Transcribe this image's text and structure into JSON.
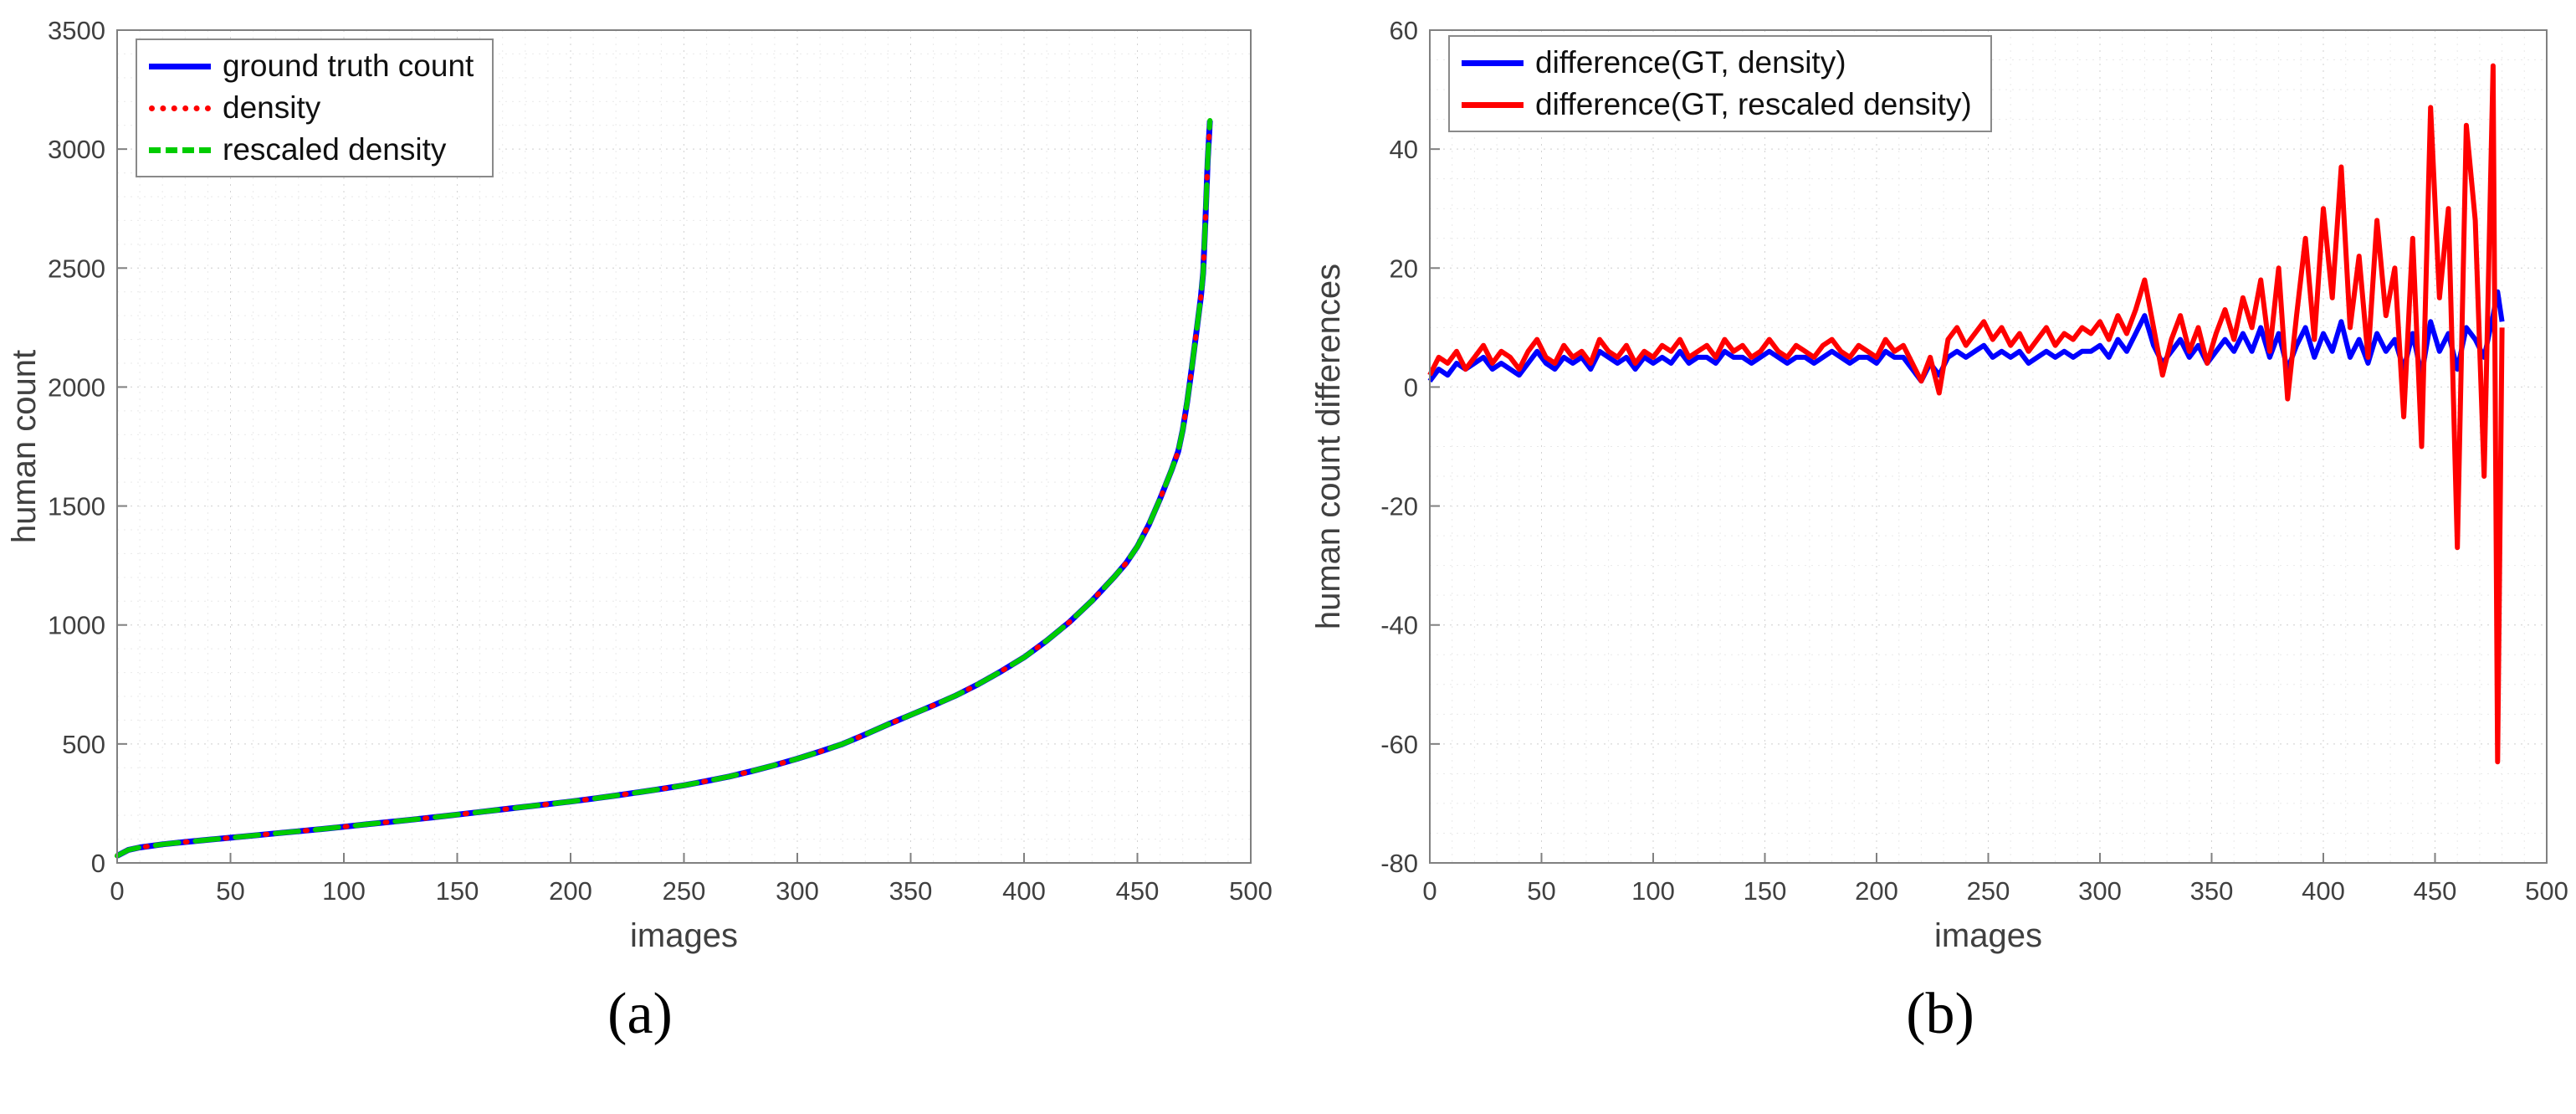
{
  "figure": {
    "caption_a": "(a)",
    "caption_b": "(b)"
  },
  "colors": {
    "blue": "#0000ff",
    "red": "#ff0000",
    "green": "#00cc00",
    "axis": "#808080",
    "grid_major": "#d2d2d2",
    "grid_minor": "#e9e9e9"
  },
  "chart_data": [
    {
      "id": "chart-a",
      "type": "line",
      "title": "",
      "xlabel": "images",
      "ylabel": "human count",
      "xlim": [
        0,
        500
      ],
      "ylim": [
        0,
        3500
      ],
      "xticks": [
        0,
        50,
        100,
        150,
        200,
        250,
        300,
        350,
        400,
        450,
        500
      ],
      "yticks": [
        0,
        500,
        1000,
        1500,
        2000,
        2500,
        3000,
        3500
      ],
      "minor_x": 10,
      "minor_y": 100,
      "grid": true,
      "legend_position": "top-left",
      "x": [
        0,
        5,
        10,
        20,
        30,
        40,
        50,
        60,
        70,
        80,
        90,
        100,
        110,
        120,
        130,
        140,
        150,
        160,
        170,
        180,
        190,
        200,
        210,
        220,
        230,
        240,
        250,
        260,
        270,
        280,
        290,
        300,
        310,
        320,
        330,
        340,
        350,
        360,
        370,
        380,
        390,
        400,
        410,
        420,
        430,
        440,
        445,
        450,
        455,
        460,
        465,
        468,
        470,
        472,
        474,
        476,
        478,
        479,
        480,
        481,
        482
      ],
      "series": [
        {
          "name": "ground truth count",
          "color": "#0000ff",
          "width": 7,
          "dash": "",
          "values": [
            30,
            55,
            65,
            78,
            88,
            97,
            106,
            115,
            124,
            133,
            142,
            152,
            162,
            172,
            182,
            192,
            203,
            214,
            225,
            236,
            247,
            258,
            270,
            283,
            297,
            311,
            326,
            344,
            363,
            386,
            411,
            438,
            468,
            500,
            540,
            582,
            622,
            662,
            704,
            752,
            806,
            864,
            934,
            1012,
            1102,
            1204,
            1260,
            1330,
            1420,
            1530,
            1650,
            1730,
            1820,
            1940,
            2080,
            2230,
            2380,
            2480,
            2700,
            2950,
            3120
          ]
        },
        {
          "name": "density",
          "color": "#ff0000",
          "width": 6,
          "dash": "2 10",
          "values": [
            30,
            55,
            65,
            78,
            88,
            97,
            106,
            115,
            124,
            133,
            142,
            152,
            162,
            172,
            182,
            192,
            203,
            214,
            225,
            236,
            247,
            258,
            270,
            283,
            297,
            311,
            326,
            344,
            363,
            386,
            411,
            438,
            468,
            500,
            540,
            582,
            622,
            662,
            704,
            752,
            806,
            864,
            934,
            1012,
            1102,
            1204,
            1260,
            1330,
            1420,
            1530,
            1650,
            1730,
            1820,
            1940,
            2080,
            2230,
            2380,
            2480,
            2700,
            2950,
            3120
          ]
        },
        {
          "name": "rescaled density",
          "color": "#00cc00",
          "width": 6,
          "dash": "28 20",
          "values": [
            30,
            55,
            65,
            78,
            88,
            97,
            106,
            115,
            124,
            133,
            142,
            152,
            162,
            172,
            182,
            192,
            203,
            214,
            225,
            236,
            247,
            258,
            270,
            283,
            297,
            311,
            326,
            344,
            363,
            386,
            411,
            438,
            468,
            500,
            540,
            582,
            622,
            662,
            704,
            752,
            806,
            864,
            934,
            1012,
            1102,
            1204,
            1260,
            1330,
            1420,
            1530,
            1650,
            1730,
            1820,
            1940,
            2080,
            2230,
            2380,
            2480,
            2700,
            2950,
            3120
          ]
        }
      ]
    },
    {
      "id": "chart-b",
      "type": "line",
      "title": "",
      "xlabel": "images",
      "ylabel": "human count differences",
      "xlim": [
        0,
        500
      ],
      "ylim": [
        -80,
        60
      ],
      "xticks": [
        0,
        50,
        100,
        150,
        200,
        250,
        300,
        350,
        400,
        450,
        500
      ],
      "yticks": [
        -80,
        -60,
        -40,
        -20,
        0,
        20,
        40,
        60
      ],
      "minor_x": 10,
      "minor_y": 5,
      "grid": true,
      "legend_position": "top-left",
      "x": [
        0,
        4,
        8,
        12,
        16,
        20,
        24,
        28,
        32,
        36,
        40,
        44,
        48,
        52,
        56,
        60,
        64,
        68,
        72,
        76,
        80,
        84,
        88,
        92,
        96,
        100,
        104,
        108,
        112,
        116,
        120,
        124,
        128,
        132,
        136,
        140,
        144,
        148,
        152,
        156,
        160,
        164,
        168,
        172,
        176,
        180,
        184,
        188,
        192,
        196,
        200,
        204,
        208,
        212,
        216,
        220,
        224,
        228,
        232,
        236,
        240,
        244,
        248,
        252,
        256,
        260,
        264,
        268,
        272,
        276,
        280,
        284,
        288,
        292,
        296,
        300,
        304,
        308,
        312,
        316,
        320,
        324,
        328,
        332,
        336,
        340,
        344,
        348,
        352,
        356,
        360,
        364,
        368,
        372,
        376,
        380,
        384,
        388,
        392,
        396,
        400,
        404,
        408,
        412,
        416,
        420,
        424,
        428,
        432,
        436,
        440,
        444,
        448,
        452,
        456,
        460,
        464,
        468,
        472,
        476,
        478,
        480
      ],
      "series": [
        {
          "name": "difference(GT, density)",
          "color": "#0000ff",
          "width": 6,
          "dash": "",
          "values": [
            1,
            3,
            2,
            4,
            3,
            4,
            5,
            3,
            4,
            3,
            2,
            4,
            6,
            4,
            3,
            5,
            4,
            5,
            3,
            6,
            5,
            4,
            5,
            3,
            5,
            4,
            5,
            4,
            6,
            4,
            5,
            5,
            4,
            6,
            5,
            5,
            4,
            5,
            6,
            5,
            4,
            5,
            5,
            4,
            5,
            6,
            5,
            4,
            5,
            5,
            4,
            6,
            5,
            5,
            3,
            1,
            4,
            2,
            5,
            6,
            5,
            6,
            7,
            5,
            6,
            5,
            6,
            4,
            5,
            6,
            5,
            6,
            5,
            6,
            6,
            7,
            5,
            8,
            6,
            9,
            12,
            7,
            4,
            6,
            8,
            5,
            7,
            4,
            6,
            8,
            6,
            9,
            6,
            10,
            5,
            9,
            3,
            7,
            10,
            5,
            9,
            6,
            11,
            5,
            8,
            4,
            9,
            6,
            8,
            3,
            9,
            2,
            11,
            6,
            9,
            3,
            10,
            8,
            5,
            12,
            16,
            11
          ]
        },
        {
          "name": "difference(GT, rescaled density)",
          "color": "#ff0000",
          "width": 6,
          "dash": "",
          "values": [
            2,
            5,
            4,
            6,
            3,
            5,
            7,
            4,
            6,
            5,
            3,
            6,
            8,
            5,
            4,
            7,
            5,
            6,
            4,
            8,
            6,
            5,
            7,
            4,
            6,
            5,
            7,
            6,
            8,
            5,
            6,
            7,
            5,
            8,
            6,
            7,
            5,
            6,
            8,
            6,
            5,
            7,
            6,
            5,
            7,
            8,
            6,
            5,
            7,
            6,
            5,
            8,
            6,
            7,
            4,
            1,
            5,
            -1,
            8,
            10,
            7,
            9,
            11,
            8,
            10,
            7,
            9,
            6,
            8,
            10,
            7,
            9,
            8,
            10,
            9,
            11,
            8,
            12,
            9,
            13,
            18,
            10,
            2,
            8,
            12,
            6,
            10,
            4,
            9,
            13,
            8,
            15,
            10,
            18,
            6,
            20,
            -2,
            12,
            25,
            8,
            30,
            15,
            37,
            10,
            22,
            5,
            28,
            12,
            20,
            -5,
            25,
            -10,
            47,
            15,
            30,
            -27,
            44,
            28,
            -15,
            54,
            -63,
            10
          ]
        }
      ]
    }
  ]
}
